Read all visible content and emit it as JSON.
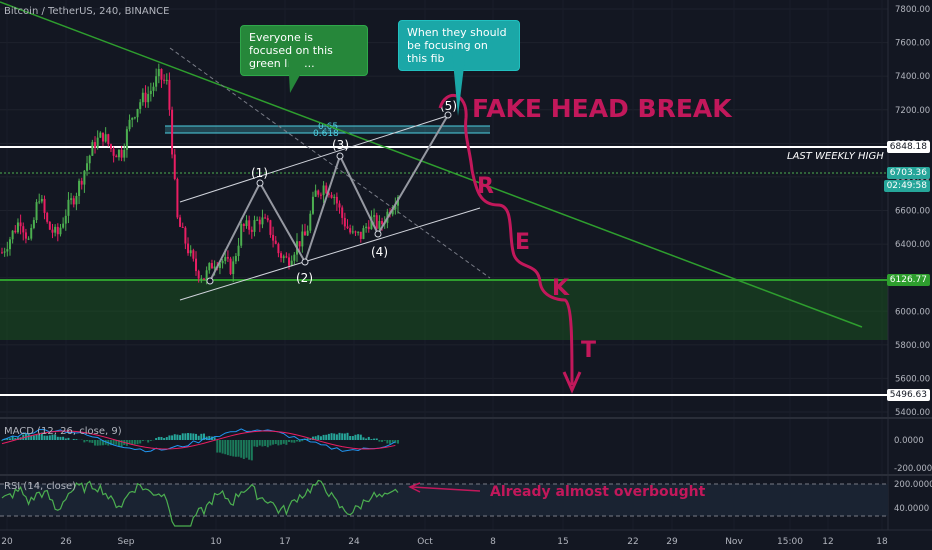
{
  "header": {
    "symbol": "Bitcoin / TetherUS, 240, BINANCE"
  },
  "annotations": {
    "green_bubble": "Everyone is focused on this green line...",
    "teal_bubble": "When they should be focusing on this fib",
    "fake_head_break": "FAKE HEAD BREAK",
    "last_weekly_high": "LAST WEEKLY HIGH",
    "already_overbought": "Already almost overbought",
    "rekt": [
      "R",
      "E",
      "K",
      "T"
    ],
    "waves": [
      "(1)",
      "(2)",
      "(3)",
      "(4)",
      "(5)"
    ],
    "fib_065": "0.65",
    "fib_0618": "0.618"
  },
  "indicators": {
    "macd_label": "MACD (12, 26, close, 9)",
    "rsi_label": "RSI (14, close)"
  },
  "price_axis": {
    "ticks": [
      "7800.00",
      "7600.00",
      "7400.00",
      "7200.00",
      "7000.00",
      "6800.00",
      "6600.00",
      "6400.00",
      "6200.00",
      "6000.00",
      "5800.00",
      "5600.00",
      "5400.00"
    ],
    "tags": {
      "weekly_high": "6848.18",
      "current": "6703.36",
      "countdown": "02:49:58",
      "support": "6126.77",
      "target": "5496.63"
    },
    "macd_ticks": [
      "0.0000",
      "-200.0000"
    ],
    "rsi_ticks": [
      "200.0000",
      "40.0000"
    ]
  },
  "time_axis": {
    "labels": [
      "20",
      "26",
      "Sep",
      "10",
      "17",
      "24",
      "Oct",
      "8",
      "15",
      "22",
      "29",
      "Nov",
      "15:00",
      "12",
      "18"
    ]
  },
  "colors": {
    "background": "#131722",
    "up": "#26a69a",
    "candle_up": "#4caf50",
    "candle_down": "#e91e63",
    "trendline": "#2e9e2e",
    "projection": "#c2185b",
    "fib": "#4dd0e1",
    "rsi": "#4caf50",
    "macd_hist": "#26a69a"
  },
  "chart_data": {
    "type": "candlestick",
    "symbol": "BTCUSDT",
    "timeframe": "240",
    "ylim": [
      5400,
      7800
    ],
    "levels": {
      "last_weekly_high": 6848.18,
      "current": 6703.36,
      "support": 6126.77,
      "target": 5496.63,
      "fib_0618": 6940,
      "fib_065": 6955
    },
    "price_path": [
      [
        "Aug 18",
        6350
      ],
      [
        "Aug 19",
        6450
      ],
      [
        "Aug 20",
        6550
      ],
      [
        "Aug 21",
        6400
      ],
      [
        "Aug 22",
        6700
      ],
      [
        "Aug 23",
        6500
      ],
      [
        "Aug 24",
        6450
      ],
      [
        "Aug 25",
        6600
      ],
      [
        "Aug 26",
        6700
      ],
      [
        "Aug 27",
        6850
      ],
      [
        "Aug 28",
        7000
      ],
      [
        "Aug 29",
        7050
      ],
      [
        "Aug 30",
        6950
      ],
      [
        "Aug 31",
        6950
      ],
      [
        "Sep 1",
        7150
      ],
      [
        "Sep 2",
        7250
      ],
      [
        "Sep 3",
        7300
      ],
      [
        "Sep 4",
        7400
      ],
      [
        "Sep 5",
        7350
      ],
      [
        "Sep 6",
        6550
      ],
      [
        "Sep 7",
        6400
      ],
      [
        "Sep 8",
        6250
      ],
      [
        "Sep 9",
        6200
      ],
      [
        "Sep 10",
        6300
      ],
      [
        "Sep 11",
        6300
      ],
      [
        "Sep 12",
        6250
      ],
      [
        "Sep 13",
        6500
      ],
      [
        "Sep 14",
        6500
      ],
      [
        "Sep 15",
        6550
      ],
      [
        "Sep 16",
        6500
      ],
      [
        "Sep 17",
        6350
      ],
      [
        "Sep 18",
        6300
      ],
      [
        "Sep 19",
        6400
      ],
      [
        "Sep 20",
        6450
      ],
      [
        "Sep 21",
        6700
      ],
      [
        "Sep 22",
        6750
      ],
      [
        "Sep 23",
        6700
      ],
      [
        "Sep 24",
        6550
      ],
      [
        "Sep 25",
        6450
      ],
      [
        "Sep 26",
        6450
      ],
      [
        "Sep 27",
        6550
      ],
      [
        "Sep 28",
        6500
      ],
      [
        "Sep 29",
        6600
      ],
      [
        "Sep 30",
        6703
      ]
    ],
    "waves": [
      {
        "label": "(1)",
        "date": "Sep 14",
        "price": 6560
      },
      {
        "label": "(2)",
        "date": "Sep 19",
        "price": 6240
      },
      {
        "label": "(3)",
        "date": "Sep 22",
        "price": 6780
      },
      {
        "label": "(4)",
        "date": "Sep 28",
        "price": 6380
      },
      {
        "label": "(5)",
        "date": "Oct 4",
        "price": 7050
      }
    ],
    "projection": [
      {
        "date": "Oct 4",
        "price": 7050
      },
      {
        "date": "Oct 6",
        "price": 6700
      },
      {
        "date": "Oct 8",
        "price": 6500
      },
      {
        "date": "Oct 10",
        "price": 6300
      },
      {
        "date": "Oct 12",
        "price": 6100
      },
      {
        "date": "Oct 15",
        "price": 5500
      }
    ],
    "rsi_band": [
      30,
      70
    ]
  }
}
